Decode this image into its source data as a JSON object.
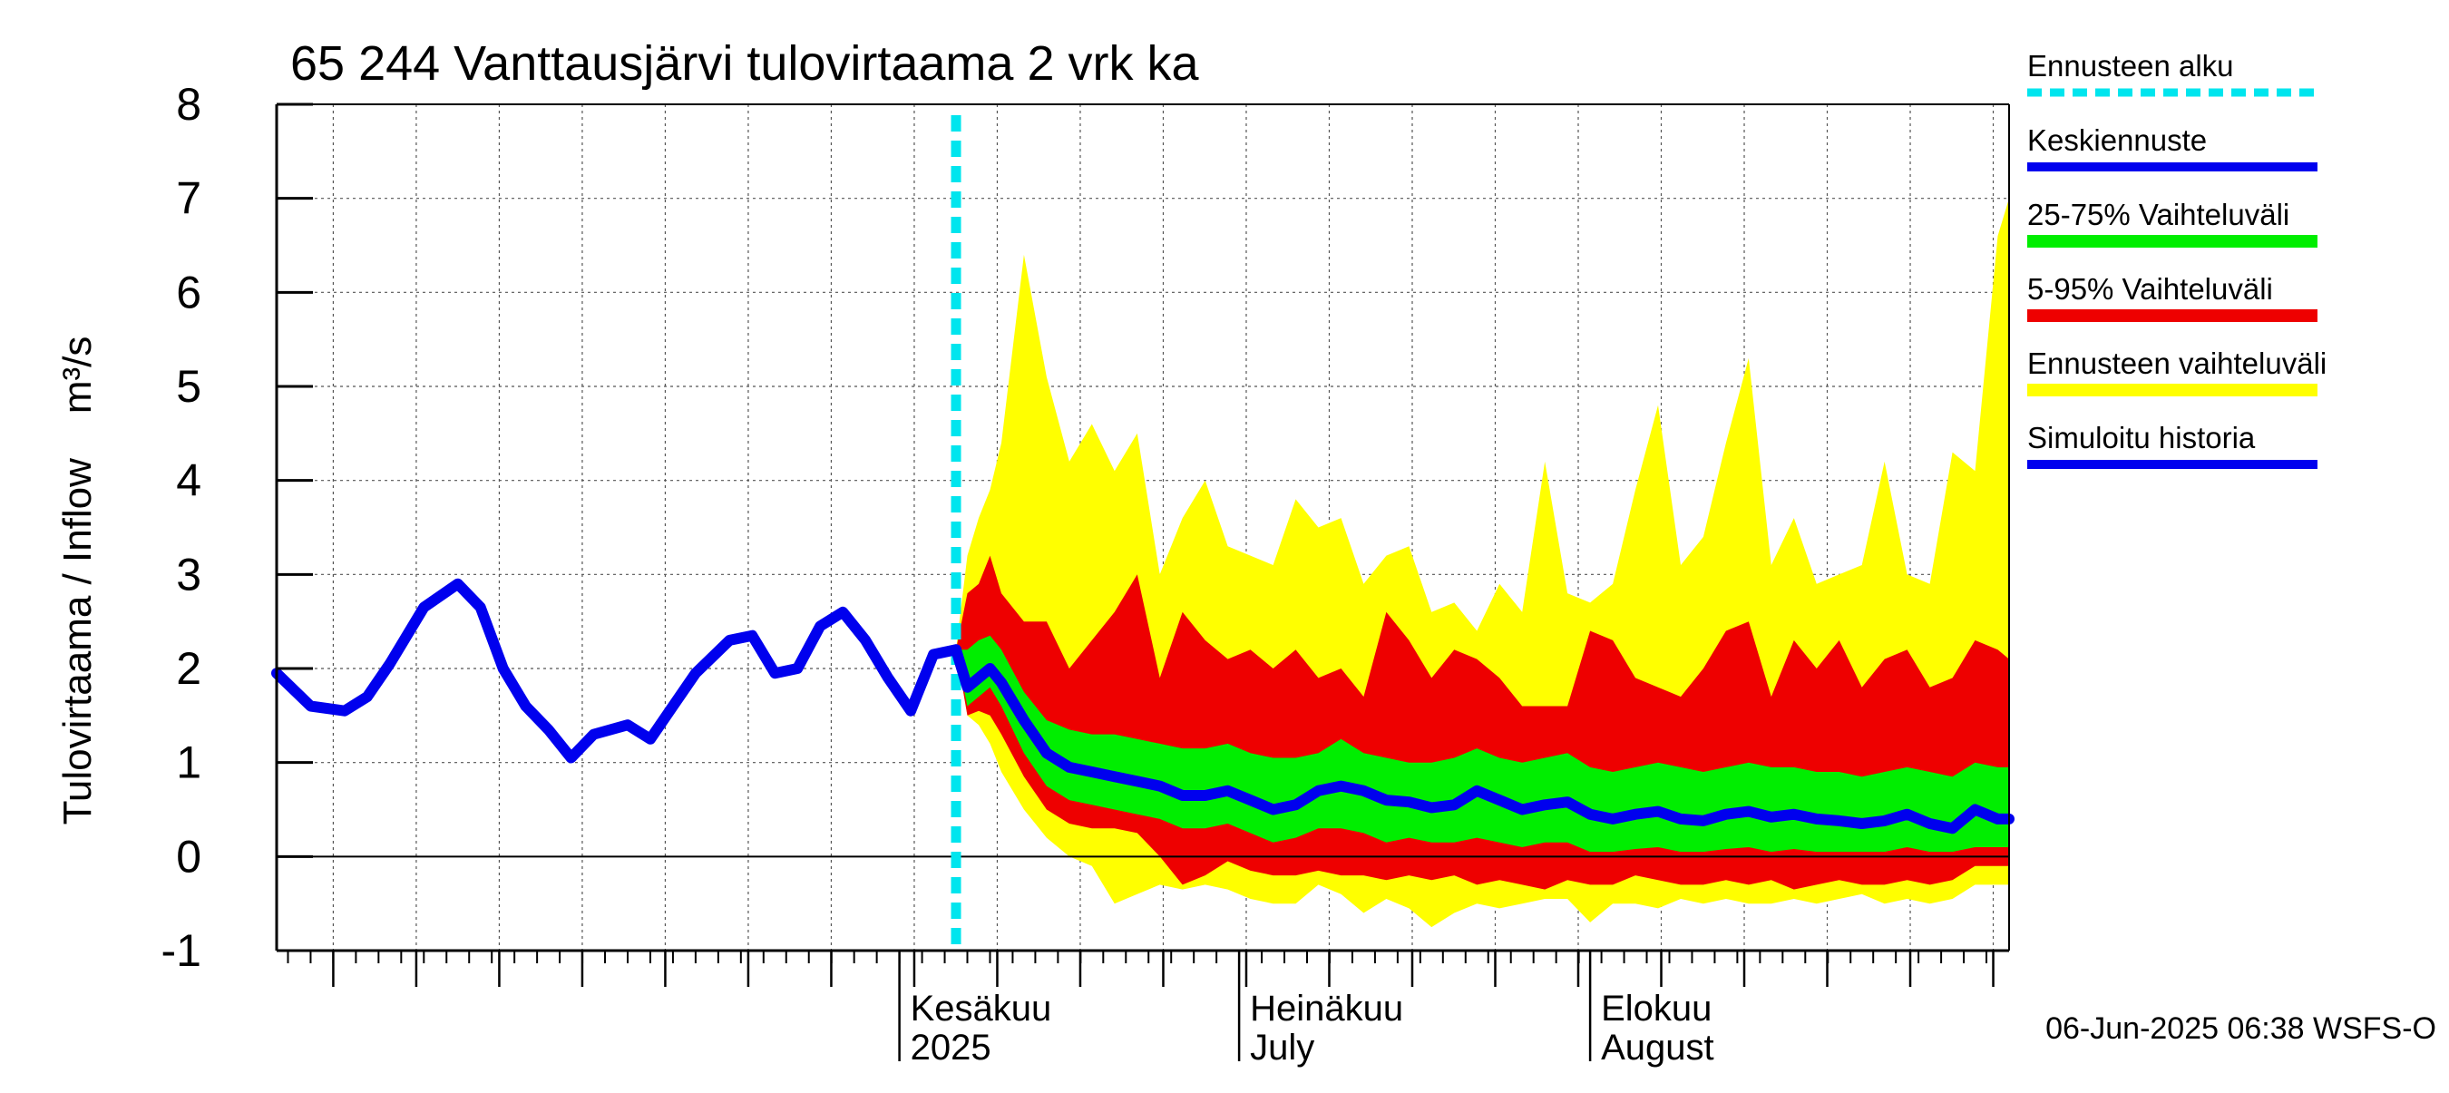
{
  "chart_data": {
    "type": "area",
    "title": "65 244 Vanttausjärvi tulovirtaama 2 vrk ka",
    "ylabel": "Tulovirtaama / Inflow    m³/s",
    "ylim": [
      -1,
      8
    ],
    "yticks": [
      -1,
      0,
      1,
      2,
      3,
      4,
      5,
      6,
      7,
      8
    ],
    "x_range": [
      "2025-04-07",
      "2025-09-07"
    ],
    "month_labels": [
      {
        "top": "Kesäkuu",
        "bottom": "2025",
        "date": "2025-06-01"
      },
      {
        "top": "Heinäkuu",
        "bottom": "July",
        "date": "2025-07-01"
      },
      {
        "top": "Elokuu",
        "bottom": "August",
        "date": "2025-08-01"
      }
    ],
    "forecast_start": "2025-06-06",
    "grid": true,
    "legend_position": "right",
    "legend": [
      {
        "label": "Ennusteen alku",
        "color": "#00e5ee",
        "style": "dashed"
      },
      {
        "label": "Keskiennuste",
        "color": "#0000ee",
        "style": "line"
      },
      {
        "label": "25-75% Vaihteluväli",
        "color": "#00ee00",
        "style": "band"
      },
      {
        "label": "5-95% Vaihteluväli",
        "color": "#ee0000",
        "style": "band"
      },
      {
        "label": "Ennusteen vaihteluväli",
        "color": "#ffff00",
        "style": "band"
      },
      {
        "label": "Simuloitu historia",
        "color": "#0000ee",
        "style": "line"
      }
    ],
    "footer": "06-Jun-2025 06:38 WSFS-O",
    "history": {
      "name": "Simuloitu historia",
      "x": [
        "2025-04-07",
        "2025-04-10",
        "2025-04-13",
        "2025-04-15",
        "2025-04-17",
        "2025-04-20",
        "2025-04-23",
        "2025-04-25",
        "2025-04-27",
        "2025-04-29",
        "2025-05-01",
        "2025-05-03",
        "2025-05-05",
        "2025-05-08",
        "2025-05-10",
        "2025-05-12",
        "2025-05-14",
        "2025-05-17",
        "2025-05-19",
        "2025-05-21",
        "2025-05-23",
        "2025-05-25",
        "2025-05-27",
        "2025-05-29",
        "2025-05-31",
        "2025-06-02",
        "2025-06-04",
        "2025-06-06"
      ],
      "y": [
        1.95,
        1.6,
        1.55,
        1.7,
        2.05,
        2.65,
        2.9,
        2.65,
        2.0,
        1.6,
        1.35,
        1.05,
        1.3,
        1.4,
        1.25,
        1.6,
        1.95,
        2.3,
        2.35,
        1.95,
        2.0,
        2.45,
        2.6,
        2.3,
        1.9,
        1.55,
        2.15,
        2.2
      ]
    },
    "forecast": {
      "x": [
        "2025-06-06",
        "2025-06-07",
        "2025-06-08",
        "2025-06-09",
        "2025-06-10",
        "2025-06-12",
        "2025-06-14",
        "2025-06-16",
        "2025-06-18",
        "2025-06-20",
        "2025-06-22",
        "2025-06-24",
        "2025-06-26",
        "2025-06-28",
        "2025-06-30",
        "2025-07-02",
        "2025-07-04",
        "2025-07-06",
        "2025-07-08",
        "2025-07-10",
        "2025-07-12",
        "2025-07-14",
        "2025-07-16",
        "2025-07-18",
        "2025-07-20",
        "2025-07-22",
        "2025-07-24",
        "2025-07-26",
        "2025-07-28",
        "2025-07-30",
        "2025-08-01",
        "2025-08-03",
        "2025-08-05",
        "2025-08-07",
        "2025-08-09",
        "2025-08-11",
        "2025-08-13",
        "2025-08-15",
        "2025-08-17",
        "2025-08-19",
        "2025-08-21",
        "2025-08-23",
        "2025-08-25",
        "2025-08-27",
        "2025-08-29",
        "2025-08-31",
        "2025-09-02",
        "2025-09-04",
        "2025-09-06",
        "2025-09-07"
      ],
      "median": [
        2.2,
        1.8,
        1.9,
        2.0,
        1.85,
        1.45,
        1.1,
        0.95,
        0.9,
        0.85,
        0.8,
        0.75,
        0.65,
        0.65,
        0.7,
        0.6,
        0.5,
        0.55,
        0.7,
        0.75,
        0.7,
        0.6,
        0.58,
        0.52,
        0.55,
        0.7,
        0.6,
        0.5,
        0.55,
        0.58,
        0.45,
        0.4,
        0.45,
        0.48,
        0.4,
        0.38,
        0.45,
        0.48,
        0.42,
        0.45,
        0.4,
        0.38,
        0.35,
        0.38,
        0.45,
        0.35,
        0.3,
        0.5,
        0.4,
        0.4
      ],
      "p25": [
        2.2,
        1.6,
        1.7,
        1.8,
        1.6,
        1.1,
        0.75,
        0.6,
        0.55,
        0.5,
        0.45,
        0.4,
        0.3,
        0.3,
        0.35,
        0.25,
        0.15,
        0.2,
        0.3,
        0.3,
        0.25,
        0.15,
        0.2,
        0.15,
        0.15,
        0.2,
        0.15,
        0.1,
        0.15,
        0.15,
        0.05,
        0.05,
        0.08,
        0.1,
        0.05,
        0.05,
        0.08,
        0.1,
        0.05,
        0.08,
        0.05,
        0.05,
        0.05,
        0.05,
        0.1,
        0.05,
        0.05,
        0.1,
        0.1,
        0.1
      ],
      "p75": [
        2.2,
        2.2,
        2.3,
        2.35,
        2.2,
        1.75,
        1.45,
        1.35,
        1.3,
        1.3,
        1.25,
        1.2,
        1.15,
        1.15,
        1.2,
        1.1,
        1.05,
        1.05,
        1.1,
        1.25,
        1.1,
        1.05,
        1.0,
        1.0,
        1.05,
        1.15,
        1.05,
        1.0,
        1.05,
        1.1,
        0.95,
        0.9,
        0.95,
        1.0,
        0.95,
        0.9,
        0.95,
        1.0,
        0.95,
        0.95,
        0.9,
        0.9,
        0.85,
        0.9,
        0.95,
        0.9,
        0.85,
        1.0,
        0.95,
        0.95
      ],
      "p5": [
        2.2,
        1.5,
        1.55,
        1.5,
        1.3,
        0.85,
        0.5,
        0.35,
        0.3,
        0.3,
        0.25,
        0.0,
        -0.3,
        -0.2,
        -0.05,
        -0.15,
        -0.2,
        -0.2,
        -0.15,
        -0.2,
        -0.2,
        -0.25,
        -0.2,
        -0.25,
        -0.2,
        -0.3,
        -0.25,
        -0.3,
        -0.35,
        -0.25,
        -0.3,
        -0.3,
        -0.2,
        -0.25,
        -0.3,
        -0.3,
        -0.25,
        -0.3,
        -0.25,
        -0.35,
        -0.3,
        -0.25,
        -0.3,
        -0.3,
        -0.25,
        -0.3,
        -0.25,
        -0.1,
        -0.1,
        -0.1
      ],
      "p95": [
        2.2,
        2.8,
        2.9,
        3.2,
        2.8,
        2.5,
        2.5,
        2.0,
        2.3,
        2.6,
        3.0,
        1.9,
        2.6,
        2.3,
        2.1,
        2.2,
        2.0,
        2.2,
        1.9,
        2.0,
        1.7,
        2.6,
        2.3,
        1.9,
        2.2,
        2.1,
        1.9,
        1.6,
        1.6,
        1.6,
        2.4,
        2.3,
        1.9,
        1.8,
        1.7,
        2.0,
        2.4,
        2.5,
        1.7,
        2.3,
        2.0,
        2.3,
        1.8,
        2.1,
        2.2,
        1.8,
        1.9,
        2.3,
        2.2,
        2.1
      ],
      "min": [
        2.2,
        1.5,
        1.4,
        1.2,
        0.9,
        0.5,
        0.2,
        0.0,
        -0.1,
        -0.5,
        -0.4,
        -0.3,
        -0.35,
        -0.3,
        -0.35,
        -0.45,
        -0.5,
        -0.5,
        -0.3,
        -0.4,
        -0.6,
        -0.45,
        -0.55,
        -0.75,
        -0.6,
        -0.5,
        -0.55,
        -0.5,
        -0.45,
        -0.45,
        -0.7,
        -0.5,
        -0.5,
        -0.55,
        -0.45,
        -0.5,
        -0.45,
        -0.5,
        -0.5,
        -0.45,
        -0.5,
        -0.45,
        -0.4,
        -0.5,
        -0.45,
        -0.5,
        -0.45,
        -0.3,
        -0.3,
        -0.3
      ],
      "max": [
        2.2,
        3.2,
        3.6,
        3.9,
        4.4,
        6.4,
        5.1,
        4.2,
        4.6,
        4.1,
        4.5,
        3.0,
        3.6,
        4.0,
        3.3,
        3.2,
        3.1,
        3.8,
        3.5,
        3.6,
        2.9,
        3.2,
        3.3,
        2.6,
        2.7,
        2.4,
        2.9,
        2.6,
        4.2,
        2.8,
        2.7,
        2.9,
        3.9,
        4.8,
        3.1,
        3.4,
        4.4,
        5.3,
        3.1,
        3.6,
        2.9,
        3.0,
        3.1,
        4.2,
        3.0,
        2.9,
        4.3,
        4.1,
        6.6,
        7.0
      ]
    }
  }
}
